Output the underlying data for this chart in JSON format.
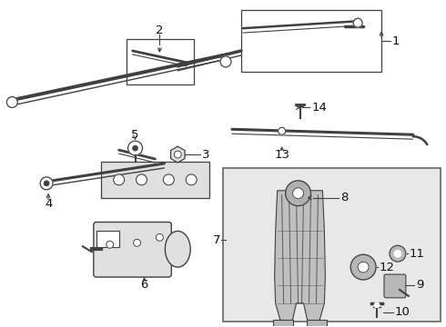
{
  "bg_color": "#ffffff",
  "line_color": "#404040",
  "text_color": "#111111",
  "gray_fill": "#c8c8c8",
  "light_gray": "#e0e0e0",
  "inset_bg": "#e8e8e8",
  "figsize": [
    4.9,
    3.6
  ],
  "dpi": 100,
  "label_fs": 9.5
}
